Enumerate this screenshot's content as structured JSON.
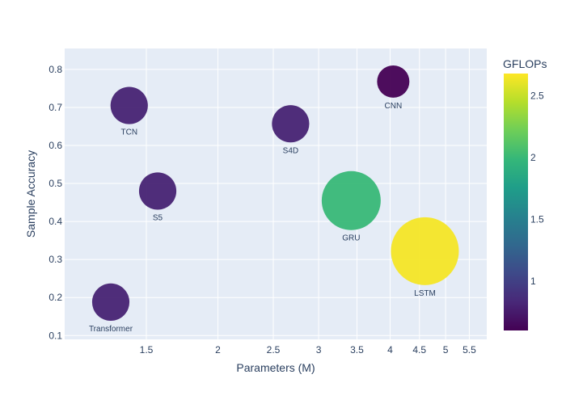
{
  "chart_data": {
    "type": "scatter",
    "xlabel": "Parameters (M)",
    "ylabel": "Sample Accuracy",
    "x_scale": "log",
    "xlim": [
      1.08,
      5.9
    ],
    "ylim": [
      0.09,
      0.855
    ],
    "x_ticks": [
      {
        "value": 1.5,
        "label": "1.5"
      },
      {
        "value": 2,
        "label": "2"
      },
      {
        "value": 2.5,
        "label": "2.5"
      },
      {
        "value": 3,
        "label": "3"
      },
      {
        "value": 3.5,
        "label": "3.5"
      },
      {
        "value": 4,
        "label": "4"
      },
      {
        "value": 4.5,
        "label": "4.5"
      },
      {
        "value": 5,
        "label": "5"
      },
      {
        "value": 5.5,
        "label": "5.5"
      }
    ],
    "y_ticks": [
      {
        "value": 0.1,
        "label": "0.1"
      },
      {
        "value": 0.2,
        "label": "0.2"
      },
      {
        "value": 0.3,
        "label": "0.3"
      },
      {
        "value": 0.4,
        "label": "0.4"
      },
      {
        "value": 0.5,
        "label": "0.5"
      },
      {
        "value": 0.6,
        "label": "0.6"
      },
      {
        "value": 0.7,
        "label": "0.7"
      },
      {
        "value": 0.8,
        "label": "0.8"
      }
    ],
    "points": [
      {
        "label": "TCN",
        "x": 1.4,
        "y": 0.705,
        "gflops": 0.8
      },
      {
        "label": "S5",
        "x": 1.57,
        "y": 0.48,
        "gflops": 0.8
      },
      {
        "label": "Transformer",
        "x": 1.3,
        "y": 0.188,
        "gflops": 0.8
      },
      {
        "label": "S4D",
        "x": 2.68,
        "y": 0.657,
        "gflops": 0.8
      },
      {
        "label": "GRU",
        "x": 3.42,
        "y": 0.455,
        "gflops": 2.0
      },
      {
        "label": "CNN",
        "x": 4.05,
        "y": 0.768,
        "gflops": 0.6
      },
      {
        "label": "LSTM",
        "x": 4.6,
        "y": 0.322,
        "gflops": 2.65
      }
    ],
    "colorbar": {
      "title": "GFLOPs",
      "range": [
        0.6,
        2.68
      ],
      "colorscale": "Viridis",
      "ticks": [
        {
          "value": 1,
          "label": "1"
        },
        {
          "value": 1.5,
          "label": "1.5"
        },
        {
          "value": 2,
          "label": "2"
        },
        {
          "value": 2.5,
          "label": "2.5"
        }
      ]
    },
    "plot_background": "#e5ecf6",
    "grid": true
  }
}
